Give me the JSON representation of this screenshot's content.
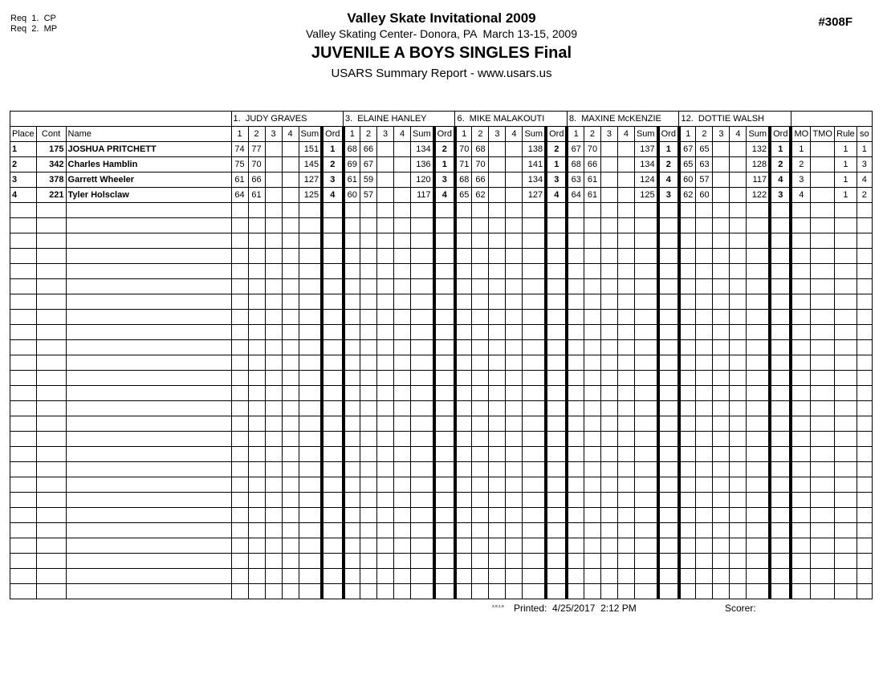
{
  "page": {
    "req_line1": "Req  1.  CP",
    "req_line2": "Req  2.  MP",
    "title": "Valley Skate Invitational 2009",
    "venue_line": "Valley Skating Center- Donora, PA  March 13-15, 2009",
    "event_title": "JUVENILE A BOYS SINGLES Final",
    "report_line": "USARS Summary Report - www.usars.us",
    "doc_number": "#308F"
  },
  "table": {
    "left_headers": [
      "Place",
      "Cont",
      "Name"
    ],
    "judges": [
      "1.  JUDY GRAVES",
      "3.  ELAINE HANLEY",
      "6.  MIKE MALAKOUTI",
      "8.  MAXINE McKENZIE",
      "12.  DOTTIE WALSH"
    ],
    "judge_subheaders": [
      "1",
      "2",
      "3",
      "4",
      "Sum",
      "Ord"
    ],
    "right_headers": [
      "MO",
      "TMO",
      "Rule",
      "so"
    ],
    "rows": [
      {
        "place": "1",
        "cont": "175",
        "name": "JOSHUA PRITCHETT",
        "judges": [
          {
            "scores": [
              "74",
              "77",
              "",
              ""
            ],
            "sum": "151",
            "ord": "1"
          },
          {
            "scores": [
              "68",
              "66",
              "",
              ""
            ],
            "sum": "134",
            "ord": "2"
          },
          {
            "scores": [
              "70",
              "68",
              "",
              ""
            ],
            "sum": "138",
            "ord": "2"
          },
          {
            "scores": [
              "67",
              "70",
              "",
              ""
            ],
            "sum": "137",
            "ord": "1"
          },
          {
            "scores": [
              "67",
              "65",
              "",
              ""
            ],
            "sum": "132",
            "ord": "1"
          }
        ],
        "mo": "1",
        "tmo": "",
        "rule": "1",
        "so": "1"
      },
      {
        "place": "2",
        "cont": "342",
        "name": "Charles Hamblin",
        "judges": [
          {
            "scores": [
              "75",
              "70",
              "",
              ""
            ],
            "sum": "145",
            "ord": "2"
          },
          {
            "scores": [
              "69",
              "67",
              "",
              ""
            ],
            "sum": "136",
            "ord": "1"
          },
          {
            "scores": [
              "71",
              "70",
              "",
              ""
            ],
            "sum": "141",
            "ord": "1"
          },
          {
            "scores": [
              "68",
              "66",
              "",
              ""
            ],
            "sum": "134",
            "ord": "2"
          },
          {
            "scores": [
              "65",
              "63",
              "",
              ""
            ],
            "sum": "128",
            "ord": "2"
          }
        ],
        "mo": "2",
        "tmo": "",
        "rule": "1",
        "so": "3"
      },
      {
        "place": "3",
        "cont": "378",
        "name": "Garrett Wheeler",
        "judges": [
          {
            "scores": [
              "61",
              "66",
              "",
              ""
            ],
            "sum": "127",
            "ord": "3"
          },
          {
            "scores": [
              "61",
              "59",
              "",
              ""
            ],
            "sum": "120",
            "ord": "3"
          },
          {
            "scores": [
              "68",
              "66",
              "",
              ""
            ],
            "sum": "134",
            "ord": "3"
          },
          {
            "scores": [
              "63",
              "61",
              "",
              ""
            ],
            "sum": "124",
            "ord": "4"
          },
          {
            "scores": [
              "60",
              "57",
              "",
              ""
            ],
            "sum": "117",
            "ord": "4"
          }
        ],
        "mo": "3",
        "tmo": "",
        "rule": "1",
        "so": "4"
      },
      {
        "place": "4",
        "cont": "221",
        "name": "Tyler Holsclaw",
        "judges": [
          {
            "scores": [
              "64",
              "61",
              "",
              ""
            ],
            "sum": "125",
            "ord": "4"
          },
          {
            "scores": [
              "60",
              "57",
              "",
              ""
            ],
            "sum": "117",
            "ord": "4"
          },
          {
            "scores": [
              "65",
              "62",
              "",
              ""
            ],
            "sum": "127",
            "ord": "4"
          },
          {
            "scores": [
              "64",
              "61",
              "",
              ""
            ],
            "sum": "125",
            "ord": "3"
          },
          {
            "scores": [
              "62",
              "60",
              "",
              ""
            ],
            "sum": "122",
            "ord": "3"
          }
        ],
        "mo": "4",
        "tmo": "",
        "rule": "1",
        "so": "2"
      }
    ],
    "empty_row_count": 26
  },
  "footer": {
    "version_text": "3.8.1.8",
    "printed_label": "Printed:",
    "printed_value": "4/25/2017  2:12 PM",
    "scorer_label": "Scorer:"
  }
}
